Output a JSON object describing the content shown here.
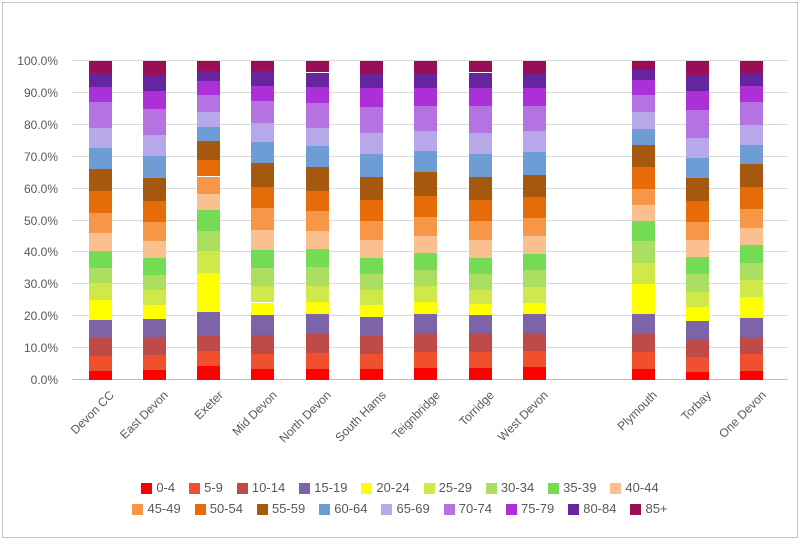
{
  "chart_data": {
    "type": "bar",
    "variant": "100%-stacked-column",
    "title": "",
    "xlabel": "",
    "ylabel": "",
    "ylim": [
      0,
      100
    ],
    "grid": true,
    "legend_position": "bottom",
    "y_ticks": [
      "0.0%",
      "10.0%",
      "20.0%",
      "30.0%",
      "40.0%",
      "50.0%",
      "60.0%",
      "70.0%",
      "80.0%",
      "90.0%",
      "100.0%"
    ],
    "categories": [
      "Devon CC",
      "East Devon",
      "Exeter",
      "Mid Devon",
      "North Devon",
      "South Hams",
      "Teignbridge",
      "Torridge",
      "West Devon",
      "",
      "Plymouth",
      "Torbay",
      "One Devon"
    ],
    "gap_category_index": 9,
    "series": [
      {
        "name": "0-4",
        "color": "#FF0000",
        "values": [
          2.8,
          3.1,
          4.3,
          3.3,
          3.6,
          3.5,
          3.9,
          3.9,
          4.0,
          0,
          3.4,
          2.6,
          2.9
        ]
      },
      {
        "name": "5-9",
        "color": "#F0502E",
        "values": [
          4.7,
          4.7,
          4.7,
          4.8,
          5.0,
          4.7,
          5.0,
          4.9,
          5.0,
          0,
          5.4,
          4.5,
          5.1
        ]
      },
      {
        "name": "10-14",
        "color": "#BE4B48",
        "values": [
          5.6,
          5.6,
          4.8,
          6.0,
          5.7,
          5.7,
          5.9,
          6.0,
          5.7,
          0,
          5.6,
          5.7,
          5.5
        ]
      },
      {
        "name": "15-19",
        "color": "#7D64A8",
        "values": [
          5.6,
          5.6,
          7.4,
          6.4,
          6.3,
          5.9,
          5.8,
          5.7,
          6.0,
          0,
          6.3,
          5.6,
          5.8
        ]
      },
      {
        "name": "20-24",
        "color": "#FFFF00",
        "values": [
          6.3,
          4.4,
          12.2,
          3.8,
          4.0,
          3.6,
          3.9,
          3.4,
          3.5,
          0,
          9.3,
          4.5,
          6.6
        ]
      },
      {
        "name": "25-29",
        "color": "#CFE94A",
        "values": [
          5.3,
          4.7,
          7.0,
          5.2,
          5.0,
          4.7,
          4.9,
          4.4,
          5.0,
          0,
          6.8,
          4.8,
          5.4
        ]
      },
      {
        "name": "30-34",
        "color": "#ABDF62",
        "values": [
          4.8,
          4.9,
          6.4,
          5.6,
          5.7,
          5.0,
          5.2,
          4.8,
          5.2,
          0,
          6.8,
          5.4,
          5.5
        ]
      },
      {
        "name": "35-39",
        "color": "#74DC54",
        "values": [
          5.3,
          5.1,
          6.6,
          5.7,
          5.7,
          5.0,
          5.2,
          5.2,
          5.0,
          0,
          6.3,
          5.4,
          5.6
        ]
      },
      {
        "name": "40-44",
        "color": "#FAC08F",
        "values": [
          5.6,
          5.5,
          4.9,
          6.2,
          5.7,
          5.7,
          5.5,
          5.7,
          5.6,
          0,
          5.0,
          5.5,
          5.4
        ]
      },
      {
        "name": "45-49",
        "color": "#F79646",
        "values": [
          6.5,
          6.0,
          5.5,
          6.8,
          6.3,
          6.1,
          5.9,
          5.8,
          5.8,
          0,
          5.0,
          5.6,
          5.7
        ]
      },
      {
        "name": "50-54",
        "color": "#E66C09",
        "values": [
          6.6,
          6.5,
          5.2,
          6.8,
          6.3,
          6.5,
          6.6,
          6.6,
          6.5,
          0,
          6.8,
          6.5,
          7.0
        ]
      },
      {
        "name": "55-59",
        "color": "#A6580E",
        "values": [
          7.2,
          7.3,
          5.9,
          7.3,
          7.5,
          7.3,
          7.3,
          7.3,
          7.1,
          0,
          7.0,
          7.1,
          7.2
        ]
      },
      {
        "name": "60-64",
        "color": "#6D9DD4",
        "values": [
          6.4,
          6.8,
          4.5,
          6.8,
          6.6,
          7.1,
          6.6,
          7.0,
          7.0,
          0,
          5.0,
          6.5,
          6.1
        ]
      },
      {
        "name": "65-69",
        "color": "#B7A8EA",
        "values": [
          6.3,
          6.6,
          4.7,
          5.8,
          5.7,
          6.5,
          6.3,
          6.8,
          6.6,
          0,
          5.2,
          6.3,
          6.1
        ]
      },
      {
        "name": "70-74",
        "color": "#B573E2",
        "values": [
          8.0,
          8.3,
          5.3,
          6.9,
          7.8,
          8.3,
          7.9,
          8.3,
          8.0,
          0,
          5.6,
          8.8,
          7.4
        ]
      },
      {
        "name": "75-79",
        "color": "#AC30D8",
        "values": [
          5.0,
          5.5,
          4.3,
          4.8,
          5.0,
          5.8,
          5.5,
          5.8,
          5.5,
          0,
          4.4,
          5.7,
          5.0
        ]
      },
      {
        "name": "80-84",
        "color": "#66259E",
        "values": [
          4.3,
          4.8,
          3.2,
          4.7,
          4.5,
          4.6,
          4.6,
          4.8,
          4.3,
          0,
          3.3,
          5.0,
          4.0
        ]
      },
      {
        "name": "85+",
        "color": "#9A0E57",
        "values": [
          3.7,
          4.6,
          3.1,
          3.1,
          3.6,
          4.0,
          4.0,
          3.6,
          4.2,
          0,
          2.8,
          4.5,
          3.7
        ]
      }
    ],
    "legend_rows": [
      [
        "0-4",
        "5-9",
        "10-14",
        "15-19",
        "20-24",
        "25-29",
        "30-34",
        "35-39",
        "40-44"
      ],
      [
        "45-49",
        "50-54",
        "55-59",
        "60-64",
        "65-69",
        "70-74",
        "75-79",
        "80-84",
        "85+"
      ]
    ]
  }
}
